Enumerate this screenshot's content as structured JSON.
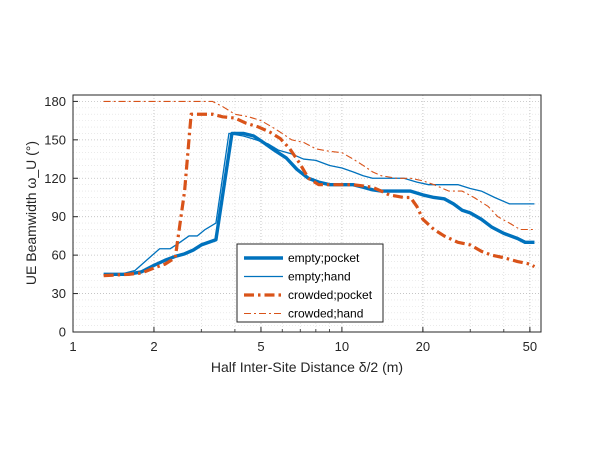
{
  "chart_data": {
    "type": "line",
    "xlabel": "Half Inter-Site Distance δ/2 (m)",
    "ylabel": "UE Beamwidth ω_U (°)",
    "x_scale": "log",
    "xlim": [
      1,
      55
    ],
    "ylim": [
      0,
      185
    ],
    "xticks": [
      1,
      2,
      5,
      10,
      20,
      50
    ],
    "yticks": [
      0,
      30,
      60,
      90,
      120,
      150,
      180
    ],
    "grid": "dotted major and minor",
    "legend_position": "center",
    "series": [
      {
        "name": "empty;pocket",
        "color": "#0072BD",
        "style": "solid-thick",
        "points": [
          [
            1.3,
            45
          ],
          [
            1.6,
            45
          ],
          [
            1.8,
            47
          ],
          [
            2.0,
            52
          ],
          [
            2.2,
            56
          ],
          [
            2.4,
            59
          ],
          [
            2.6,
            61
          ],
          [
            2.8,
            64
          ],
          [
            3.0,
            68
          ],
          [
            3.4,
            72
          ],
          [
            3.9,
            155
          ],
          [
            4.3,
            155
          ],
          [
            4.7,
            153
          ],
          [
            5.1,
            148
          ],
          [
            5.6,
            142
          ],
          [
            6.2,
            136
          ],
          [
            6.8,
            127
          ],
          [
            7.5,
            120
          ],
          [
            8.2,
            117
          ],
          [
            9.0,
            115
          ],
          [
            10,
            115
          ],
          [
            11,
            115
          ],
          [
            12,
            113
          ],
          [
            13,
            111
          ],
          [
            14,
            110
          ],
          [
            16,
            110
          ],
          [
            18,
            110
          ],
          [
            20,
            107
          ],
          [
            22,
            105
          ],
          [
            24,
            104
          ],
          [
            26,
            100
          ],
          [
            28,
            95
          ],
          [
            30,
            93
          ],
          [
            33,
            88
          ],
          [
            36,
            82
          ],
          [
            40,
            77
          ],
          [
            45,
            73
          ],
          [
            48,
            70
          ],
          [
            52,
            70
          ]
        ]
      },
      {
        "name": "empty;hand",
        "color": "#0072BD",
        "style": "solid-thin",
        "points": [
          [
            1.3,
            45
          ],
          [
            1.5,
            45
          ],
          [
            1.7,
            48
          ],
          [
            1.9,
            57
          ],
          [
            2.1,
            65
          ],
          [
            2.3,
            65
          ],
          [
            2.5,
            70
          ],
          [
            2.7,
            75
          ],
          [
            2.9,
            75
          ],
          [
            3.1,
            80
          ],
          [
            3.4,
            85
          ],
          [
            3.8,
            155
          ],
          [
            4.3,
            153
          ],
          [
            4.8,
            150
          ],
          [
            5.3,
            147
          ],
          [
            5.8,
            142
          ],
          [
            6.5,
            139
          ],
          [
            7.2,
            135
          ],
          [
            8,
            134
          ],
          [
            9,
            130
          ],
          [
            10,
            128
          ],
          [
            11,
            125
          ],
          [
            12,
            122
          ],
          [
            13,
            120
          ],
          [
            15,
            120
          ],
          [
            17,
            120
          ],
          [
            19,
            117
          ],
          [
            21,
            115
          ],
          [
            24,
            115
          ],
          [
            27,
            115
          ],
          [
            30,
            112
          ],
          [
            33,
            110
          ],
          [
            37,
            105
          ],
          [
            42,
            100
          ],
          [
            48,
            100
          ],
          [
            52,
            100
          ]
        ]
      },
      {
        "name": "crowded;pocket",
        "color": "#D95319",
        "style": "dashdot-thick",
        "points": [
          [
            1.3,
            44
          ],
          [
            1.6,
            45
          ],
          [
            1.8,
            46
          ],
          [
            2.0,
            50
          ],
          [
            2.2,
            53
          ],
          [
            2.4,
            58
          ],
          [
            2.6,
            110
          ],
          [
            2.75,
            170
          ],
          [
            3.0,
            170
          ],
          [
            3.3,
            170
          ],
          [
            3.6,
            168
          ],
          [
            4.0,
            167
          ],
          [
            4.4,
            163
          ],
          [
            4.9,
            160
          ],
          [
            5.4,
            156
          ],
          [
            5.9,
            151
          ],
          [
            6.4,
            143
          ],
          [
            7.0,
            131
          ],
          [
            7.5,
            120
          ],
          [
            8.2,
            115
          ],
          [
            9.0,
            115
          ],
          [
            10,
            115
          ],
          [
            11,
            115
          ],
          [
            12,
            114
          ],
          [
            13,
            113
          ],
          [
            14,
            110
          ],
          [
            15,
            107
          ],
          [
            17,
            105
          ],
          [
            18,
            105
          ],
          [
            19,
            98
          ],
          [
            20,
            88
          ],
          [
            22,
            80
          ],
          [
            24,
            75
          ],
          [
            27,
            70
          ],
          [
            30,
            68
          ],
          [
            33,
            63
          ],
          [
            36,
            60
          ],
          [
            40,
            58
          ],
          [
            45,
            55
          ],
          [
            50,
            53
          ],
          [
            52,
            51
          ]
        ]
      },
      {
        "name": "crowded;hand",
        "color": "#D95319",
        "style": "dashdot-thin",
        "points": [
          [
            1.3,
            180
          ],
          [
            1.6,
            180
          ],
          [
            2.0,
            180
          ],
          [
            2.5,
            180
          ],
          [
            3.0,
            180
          ],
          [
            3.3,
            180
          ],
          [
            3.6,
            176
          ],
          [
            4.0,
            170
          ],
          [
            4.5,
            168
          ],
          [
            5.0,
            165
          ],
          [
            5.5,
            160
          ],
          [
            6.0,
            155
          ],
          [
            6.5,
            150
          ],
          [
            7.2,
            148
          ],
          [
            8,
            143
          ],
          [
            9,
            141
          ],
          [
            10,
            140
          ],
          [
            11,
            135
          ],
          [
            12,
            130
          ],
          [
            13,
            125
          ],
          [
            14,
            122
          ],
          [
            16,
            120
          ],
          [
            18,
            120
          ],
          [
            20,
            118
          ],
          [
            22,
            115
          ],
          [
            25,
            110
          ],
          [
            28,
            110
          ],
          [
            31,
            105
          ],
          [
            35,
            98
          ],
          [
            38,
            90
          ],
          [
            42,
            85
          ],
          [
            46,
            80
          ],
          [
            50,
            80
          ],
          [
            52,
            80
          ]
        ]
      }
    ]
  }
}
